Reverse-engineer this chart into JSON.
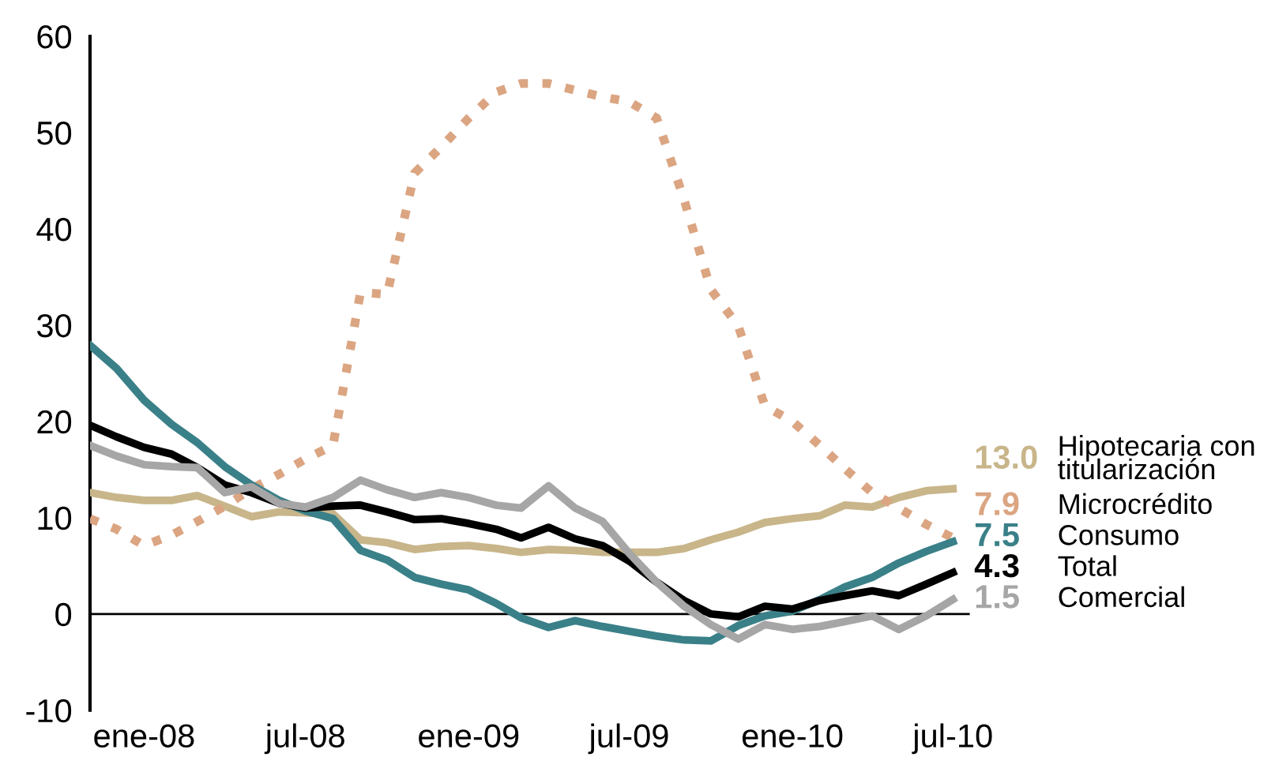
{
  "chart_data": {
    "type": "line",
    "x": [
      "2007-11",
      "2007-12",
      "2008-01",
      "2008-02",
      "2008-03",
      "2008-04",
      "2008-05",
      "2008-06",
      "2008-07",
      "2008-08",
      "2008-09",
      "2008-10",
      "2008-11",
      "2008-12",
      "2009-01",
      "2009-02",
      "2009-03",
      "2009-04",
      "2009-05",
      "2009-06",
      "2009-07",
      "2009-08",
      "2009-09",
      "2009-10",
      "2009-11",
      "2009-12",
      "2010-01",
      "2010-02",
      "2010-03",
      "2010-04",
      "2010-05",
      "2010-06",
      "2010-07"
    ],
    "series": [
      {
        "name": "Hipotecaria con\ntitularización",
        "color": "#c8b58a",
        "line_style": "solid",
        "values": [
          12.6,
          12.1,
          11.8,
          11.8,
          12.3,
          11.2,
          10.1,
          10.6,
          10.5,
          10.4,
          7.7,
          7.4,
          6.7,
          7.0,
          7.1,
          6.8,
          6.4,
          6.7,
          6.6,
          6.4,
          6.4,
          6.4,
          6.8,
          7.7,
          8.5,
          9.5,
          9.9,
          10.2,
          11.3,
          11.1,
          12.1,
          12.8,
          13.0
        ],
        "value_labels": [
          null,
          null,
          null,
          null,
          null,
          null,
          null,
          null,
          null,
          null,
          null,
          null,
          null,
          null,
          null,
          null,
          null,
          null,
          null,
          null,
          null,
          null,
          null,
          null,
          null,
          null,
          null,
          null,
          null,
          null,
          null,
          null,
          "13.0"
        ]
      },
      {
        "name": "Microcrédito",
        "color": "#dba582",
        "line_style": "dotted",
        "values": [
          9.9,
          8.8,
          7.1,
          8.2,
          9.6,
          11.2,
          13.0,
          14.5,
          16.1,
          17.5,
          33.4,
          33.2,
          45.8,
          48.5,
          51.5,
          54.2,
          55.1,
          55.1,
          54.4,
          53.7,
          53.2,
          51.5,
          43.0,
          33.7,
          29.9,
          21.6,
          20.0,
          17.5,
          15.1,
          12.6,
          11.0,
          9.3,
          7.9
        ],
        "value_labels": [
          null,
          null,
          null,
          null,
          null,
          null,
          null,
          null,
          null,
          null,
          null,
          null,
          null,
          null,
          null,
          null,
          null,
          null,
          null,
          null,
          null,
          null,
          null,
          null,
          null,
          null,
          null,
          null,
          null,
          null,
          null,
          null,
          "7.9"
        ]
      },
      {
        "name": "Consumo",
        "color": "#3a8088",
        "line_style": "solid",
        "values": [
          27.9,
          25.5,
          22.2,
          19.7,
          17.8,
          15.3,
          13.4,
          11.8,
          10.7,
          9.9,
          6.6,
          5.6,
          3.8,
          3.1,
          2.5,
          1.1,
          -0.4,
          -1.4,
          -0.7,
          -1.3,
          -1.8,
          -2.3,
          -2.7,
          -2.8,
          -1.2,
          -0.2,
          0.3,
          1.5,
          2.8,
          3.8,
          5.3,
          6.5,
          7.5
        ],
        "value_labels": [
          null,
          null,
          null,
          null,
          null,
          null,
          null,
          null,
          null,
          null,
          null,
          null,
          null,
          null,
          null,
          null,
          null,
          null,
          null,
          null,
          null,
          null,
          null,
          null,
          null,
          null,
          null,
          null,
          null,
          null,
          null,
          null,
          "7.5"
        ]
      },
      {
        "name": "Total",
        "color": "#000000",
        "line_style": "solid",
        "values": [
          19.6,
          18.4,
          17.3,
          16.6,
          15.2,
          13.4,
          12.6,
          11.5,
          11.0,
          11.2,
          11.3,
          10.6,
          9.8,
          9.9,
          9.4,
          8.8,
          7.9,
          9.0,
          7.8,
          7.1,
          5.5,
          3.3,
          1.4,
          0.0,
          -0.3,
          0.8,
          0.5,
          1.4,
          1.9,
          2.4,
          1.9,
          3.1,
          4.3
        ],
        "value_labels": [
          null,
          null,
          null,
          null,
          null,
          null,
          null,
          null,
          null,
          null,
          null,
          null,
          null,
          null,
          null,
          null,
          null,
          null,
          null,
          null,
          null,
          null,
          null,
          null,
          null,
          null,
          null,
          null,
          null,
          null,
          null,
          null,
          "4.3"
        ]
      },
      {
        "name": "Comercial",
        "color": "#a6a6a6",
        "line_style": "solid",
        "values": [
          17.5,
          16.4,
          15.5,
          15.3,
          15.2,
          12.6,
          13.2,
          11.5,
          11.1,
          12.1,
          13.9,
          12.9,
          12.1,
          12.6,
          12.1,
          11.3,
          11.0,
          13.3,
          11.0,
          9.6,
          6.3,
          3.3,
          0.8,
          -1.1,
          -2.6,
          -1.1,
          -1.6,
          -1.3,
          -0.8,
          -0.2,
          -1.6,
          -0.2,
          1.5
        ],
        "value_labels": [
          null,
          null,
          null,
          null,
          null,
          null,
          null,
          null,
          null,
          null,
          null,
          null,
          null,
          null,
          null,
          null,
          null,
          null,
          null,
          null,
          null,
          null,
          null,
          null,
          null,
          null,
          null,
          null,
          null,
          null,
          null,
          null,
          "1.5"
        ]
      }
    ],
    "xlim": [
      "2007-11-01",
      "2010-07-20"
    ],
    "xticks": [
      {
        "value": "2008-01",
        "label": "ene-08"
      },
      {
        "value": "2008-07",
        "label": "jul-08"
      },
      {
        "value": "2009-01",
        "label": "ene-09"
      },
      {
        "value": "2009-07",
        "label": "jul-09"
      },
      {
        "value": "2010-01",
        "label": "ene-10"
      },
      {
        "value": "2010-07",
        "label": "jul-10"
      }
    ],
    "ylim": [
      -10,
      60
    ],
    "yticks": [
      -10,
      0,
      10,
      20,
      30,
      40,
      50,
      60
    ],
    "ref_lines": [
      {
        "axis": "y",
        "value": 0,
        "color": "#000000"
      }
    ],
    "grid": false,
    "legend": "right",
    "marker": "none"
  }
}
